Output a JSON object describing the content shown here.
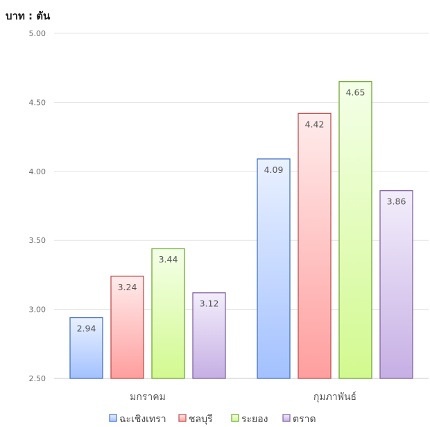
{
  "chart_data": {
    "type": "bar",
    "unit_label": "บาท : ตัน",
    "categories": [
      "มกราคม",
      "กุมภาพันธ์"
    ],
    "series": [
      {
        "name": "ฉะเชิงเทรา",
        "values": [
          2.94,
          4.09
        ],
        "color": "#4472c4",
        "fill_top": "#eaf1ff",
        "fill_bottom": "#a3c1ff"
      },
      {
        "name": "ชลบุรี",
        "values": [
          3.24,
          4.42
        ],
        "color": "#c0504d",
        "fill_top": "#ffecec",
        "fill_bottom": "#ff9e9e"
      },
      {
        "name": "ระยอง",
        "values": [
          3.44,
          4.65
        ],
        "color": "#6ea832",
        "fill_top": "#f4ffe8",
        "fill_bottom": "#d2f98f"
      },
      {
        "name": "ตราด",
        "values": [
          3.12,
          3.86
        ],
        "color": "#8064a2",
        "fill_top": "#f3eefb",
        "fill_bottom": "#c6afe4"
      }
    ],
    "yticks": [
      "2.50",
      "3.00",
      "3.50",
      "4.00",
      "4.50",
      "5.00"
    ],
    "ylim": [
      2.5,
      5.0
    ],
    "grid": true,
    "legend": "bottom"
  }
}
